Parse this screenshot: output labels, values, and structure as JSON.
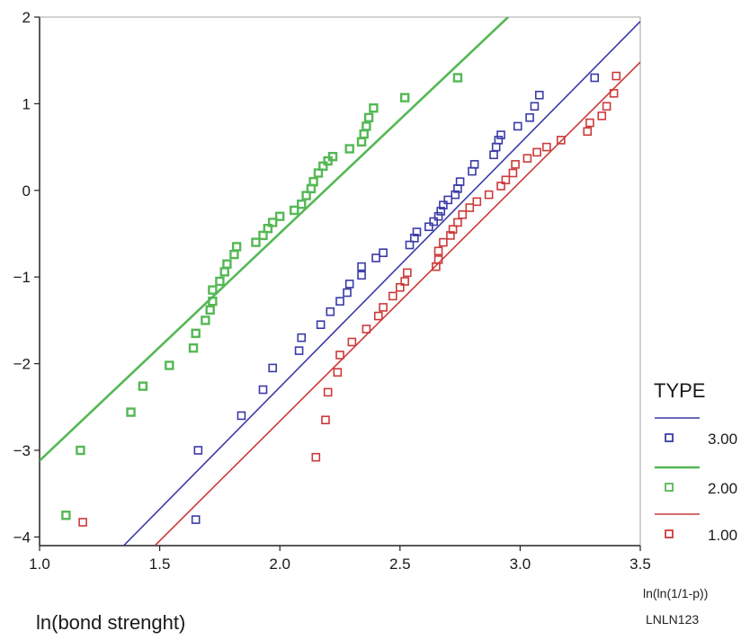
{
  "chart_data": {
    "type": "scatter",
    "xlabel": "ln(bond strenght)",
    "y_axis_note": "ln(ln(1/1-p))",
    "source_note": "LNLN123",
    "xlim": [
      1.0,
      3.5
    ],
    "ylim": [
      -4.1,
      2.0
    ],
    "x_ticks": [
      "1.0",
      "1.5",
      "2.0",
      "2.5",
      "3.0",
      "3.5"
    ],
    "y_ticks": [
      "2",
      "1",
      "0",
      "−1",
      "−2",
      "−3",
      "−4"
    ],
    "x_tick_values": [
      1.0,
      1.5,
      2.0,
      2.5,
      3.0,
      3.5
    ],
    "y_tick_values": [
      2,
      1,
      0,
      -1,
      -2,
      -3,
      -4
    ],
    "grid": false,
    "legend": {
      "title": "TYPE",
      "placement": "right",
      "entries": [
        "3.00",
        "2.00",
        "1.00"
      ]
    },
    "series": [
      {
        "name": "3.00",
        "color": "#3a3aa8",
        "fit_line": {
          "x": [
            1.35,
            3.5
          ],
          "y": [
            -4.1,
            1.95
          ]
        },
        "points": [
          [
            1.65,
            -3.8
          ],
          [
            1.66,
            -3.0
          ],
          [
            1.84,
            -2.6
          ],
          [
            1.93,
            -2.3
          ],
          [
            1.97,
            -2.05
          ],
          [
            2.08,
            -1.85
          ],
          [
            2.09,
            -1.7
          ],
          [
            2.17,
            -1.55
          ],
          [
            2.21,
            -1.4
          ],
          [
            2.25,
            -1.28
          ],
          [
            2.28,
            -1.18
          ],
          [
            2.29,
            -1.08
          ],
          [
            2.34,
            -0.98
          ],
          [
            2.34,
            -0.88
          ],
          [
            2.4,
            -0.78
          ],
          [
            2.43,
            -0.72
          ],
          [
            2.54,
            -0.63
          ],
          [
            2.56,
            -0.55
          ],
          [
            2.57,
            -0.48
          ],
          [
            2.62,
            -0.42
          ],
          [
            2.64,
            -0.36
          ],
          [
            2.66,
            -0.3
          ],
          [
            2.67,
            -0.24
          ],
          [
            2.68,
            -0.17
          ],
          [
            2.7,
            -0.11
          ],
          [
            2.73,
            -0.05
          ],
          [
            2.74,
            0.02
          ],
          [
            2.75,
            0.1
          ],
          [
            2.8,
            0.22
          ],
          [
            2.81,
            0.3
          ],
          [
            2.89,
            0.41
          ],
          [
            2.9,
            0.5
          ],
          [
            2.91,
            0.58
          ],
          [
            2.92,
            0.64
          ],
          [
            2.99,
            0.74
          ],
          [
            3.04,
            0.84
          ],
          [
            3.06,
            0.97
          ],
          [
            3.08,
            1.1
          ],
          [
            3.31,
            1.3
          ]
        ]
      },
      {
        "name": "2.00",
        "color": "#55b855",
        "fit_line": {
          "x": [
            1.0,
            2.95
          ],
          "y": [
            -3.12,
            2.0
          ]
        },
        "points": [
          [
            1.11,
            -3.75
          ],
          [
            1.17,
            -3.0
          ],
          [
            1.38,
            -2.56
          ],
          [
            1.43,
            -2.26
          ],
          [
            1.54,
            -2.02
          ],
          [
            1.64,
            -1.82
          ],
          [
            1.65,
            -1.65
          ],
          [
            1.69,
            -1.5
          ],
          [
            1.71,
            -1.38
          ],
          [
            1.72,
            -1.28
          ],
          [
            1.72,
            -1.15
          ],
          [
            1.75,
            -1.05
          ],
          [
            1.77,
            -0.94
          ],
          [
            1.78,
            -0.85
          ],
          [
            1.81,
            -0.74
          ],
          [
            1.82,
            -0.65
          ],
          [
            1.9,
            -0.6
          ],
          [
            1.93,
            -0.52
          ],
          [
            1.95,
            -0.44
          ],
          [
            1.97,
            -0.37
          ],
          [
            2.0,
            -0.3
          ],
          [
            2.06,
            -0.23
          ],
          [
            2.09,
            -0.16
          ],
          [
            2.11,
            -0.06
          ],
          [
            2.13,
            0.02
          ],
          [
            2.14,
            0.1
          ],
          [
            2.16,
            0.2
          ],
          [
            2.18,
            0.28
          ],
          [
            2.2,
            0.34
          ],
          [
            2.22,
            0.39
          ],
          [
            2.29,
            0.48
          ],
          [
            2.34,
            0.56
          ],
          [
            2.35,
            0.65
          ],
          [
            2.36,
            0.74
          ],
          [
            2.37,
            0.84
          ],
          [
            2.39,
            0.95
          ],
          [
            2.52,
            1.07
          ],
          [
            2.74,
            1.3
          ]
        ]
      },
      {
        "name": "1.00",
        "color": "#cc3a3a",
        "fit_line": {
          "x": [
            1.48,
            3.5
          ],
          "y": [
            -4.1,
            1.48
          ]
        },
        "points": [
          [
            1.18,
            -3.83
          ],
          [
            2.15,
            -3.08
          ],
          [
            2.19,
            -2.65
          ],
          [
            2.2,
            -2.33
          ],
          [
            2.24,
            -2.1
          ],
          [
            2.25,
            -1.9
          ],
          [
            2.3,
            -1.75
          ],
          [
            2.36,
            -1.6
          ],
          [
            2.41,
            -1.45
          ],
          [
            2.43,
            -1.35
          ],
          [
            2.47,
            -1.22
          ],
          [
            2.5,
            -1.12
          ],
          [
            2.52,
            -1.05
          ],
          [
            2.53,
            -0.95
          ],
          [
            2.65,
            -0.88
          ],
          [
            2.66,
            -0.8
          ],
          [
            2.66,
            -0.7
          ],
          [
            2.68,
            -0.6
          ],
          [
            2.71,
            -0.52
          ],
          [
            2.72,
            -0.45
          ],
          [
            2.74,
            -0.37
          ],
          [
            2.76,
            -0.28
          ],
          [
            2.79,
            -0.2
          ],
          [
            2.82,
            -0.13
          ],
          [
            2.87,
            -0.05
          ],
          [
            2.92,
            0.05
          ],
          [
            2.94,
            0.12
          ],
          [
            2.97,
            0.2
          ],
          [
            2.98,
            0.3
          ],
          [
            3.03,
            0.37
          ],
          [
            3.07,
            0.44
          ],
          [
            3.11,
            0.5
          ],
          [
            3.17,
            0.58
          ],
          [
            3.28,
            0.68
          ],
          [
            3.29,
            0.78
          ],
          [
            3.34,
            0.86
          ],
          [
            3.36,
            0.97
          ],
          [
            3.39,
            1.12
          ],
          [
            3.4,
            1.32
          ]
        ]
      }
    ]
  }
}
